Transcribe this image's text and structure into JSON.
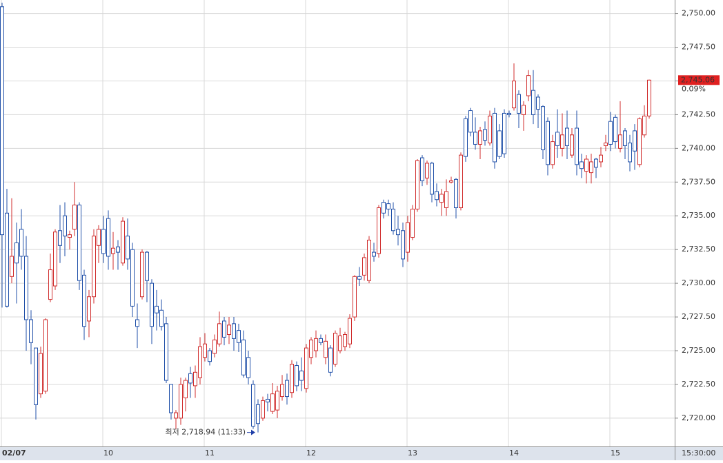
{
  "chart_data": {
    "type": "candlestick",
    "categories": [
      "02/07",
      null,
      null,
      null,
      null,
      null,
      null,
      null,
      null,
      null,
      null,
      null,
      null,
      null,
      null,
      null,
      null,
      null,
      null,
      null,
      null,
      "10",
      null,
      null,
      null,
      null,
      null,
      null,
      null,
      null,
      null,
      null,
      null,
      null,
      null,
      null,
      null,
      null,
      null,
      null,
      null,
      null,
      "11",
      null,
      null,
      null,
      null,
      null,
      null,
      null,
      null,
      null,
      null,
      null,
      null,
      null,
      null,
      null,
      null,
      null,
      null,
      null,
      null,
      "12",
      null,
      null,
      null,
      null,
      null,
      null,
      null,
      null,
      null,
      null,
      null,
      null,
      null,
      null,
      null,
      null,
      null,
      null,
      null,
      null,
      "13",
      null,
      null,
      null,
      null,
      null,
      null,
      null,
      null,
      null,
      null,
      null,
      null,
      null,
      null,
      null,
      null,
      null,
      null,
      null,
      null,
      "14",
      null,
      null,
      null,
      null,
      null,
      null,
      null,
      null,
      null,
      null,
      null,
      null,
      null,
      null,
      null,
      null,
      null,
      null,
      null,
      null,
      "15",
      null,
      null,
      null,
      null,
      null,
      null,
      null,
      null
    ],
    "open": [
      2750.5,
      2735.2,
      2730.5,
      2733.0,
      2734.0,
      2732.0,
      2727.3,
      2725.2,
      2721.8,
      2722.0,
      2728.8,
      2729.8,
      2733.9,
      2735.0,
      2733.4,
      2734.0,
      2735.8,
      2730.6,
      2727.2,
      2729.0,
      2732.8,
      2734.0,
      2734.8,
      2732.2,
      2732.7,
      2731.5,
      2733.5,
      2732.5,
      2727.3,
      2729.0,
      2732.3,
      2730.0,
      2728.3,
      2728.0,
      2727.0,
      2722.5,
      2720.0,
      2720.0,
      2721.5,
      2723.3,
      2722.4,
      2723.0,
      2724.5,
      2725.0,
      2724.8,
      2725.5,
      2727.2,
      2726.2,
      2727.0,
      2726.5,
      2725.8,
      2724.5,
      2722.5,
      2721.0,
      2720.0,
      2721.4,
      2720.5,
      2720.6,
      2721.6,
      2722.8,
      2721.9,
      2723.9,
      2723.5,
      2722.2,
      2724.5,
      2725.0,
      2725.9,
      2724.5,
      2725.2,
      2724.0,
      2725.0,
      2725.3,
      2725.5,
      2727.5,
      2730.5,
      2730.6,
      2730.2,
      2732.3,
      2732.2,
      2736.0,
      2735.9,
      2735.5,
      2734.0,
      2733.9,
      2732.3,
      2733.4,
      2735.5,
      2739.3,
      2737.8,
      2738.9,
      2736.8,
      2736.0,
      2735.6,
      2737.5,
      2737.7,
      2735.6,
      2742.2,
      2742.8,
      2741.2,
      2740.3,
      2741.4,
      2740.4,
      2742.6,
      2741.3,
      2742.6,
      2742.6,
      2743.0,
      2744.0,
      2742.5,
      2743.9,
      2744.3,
      2743.8,
      2743.1,
      2742.0,
      2738.8,
      2741.2,
      2740.0,
      2741.5,
      2739.5,
      2741.5,
      2739.0,
      2738.3,
      2738.2,
      2739.2,
      2739.0,
      2740.2,
      2742.0,
      2742.3,
      2740.0,
      2741.3,
      2740.4,
      2741.3,
      2738.8,
      2741.0,
      2742.4
    ],
    "high": [
      2750.8,
      2737.0,
      2736.3,
      2734.5,
      2735.5,
      2733.5,
      2728.0,
      2725.2,
      2725.3,
      2727.4,
      2732.2,
      2734.0,
      2735.8,
      2736.0,
      2733.9,
      2737.5,
      2736.0,
      2731.0,
      2729.5,
      2734.0,
      2734.3,
      2735.0,
      2735.4,
      2733.8,
      2733.2,
      2734.9,
      2734.8,
      2733.0,
      2728.5,
      2732.5,
      2732.4,
      2730.3,
      2729.5,
      2728.8,
      2727.5,
      2722.5,
      2720.6,
      2723.0,
      2723.0,
      2723.8,
      2723.9,
      2726.0,
      2726.3,
      2725.2,
      2726.2,
      2727.9,
      2727.5,
      2727.5,
      2727.5,
      2727.0,
      2726.5,
      2725.0,
      2722.8,
      2721.4,
      2721.6,
      2721.8,
      2722.6,
      2722.4,
      2723.2,
      2723.3,
      2724.3,
      2724.2,
      2724.5,
      2725.5,
      2726.0,
      2726.5,
      2726.2,
      2726.2,
      2725.4,
      2726.5,
      2726.7,
      2726.4,
      2727.7,
      2730.6,
      2731.2,
      2732.2,
      2733.5,
      2733.0,
      2735.8,
      2736.2,
      2736.2,
      2736.0,
      2735.0,
      2734.5,
      2735.0,
      2735.8,
      2739.2,
      2739.5,
      2739.1,
      2739.0,
      2737.4,
      2737.0,
      2737.7,
      2737.9,
      2737.8,
      2739.7,
      2742.4,
      2743.0,
      2742.3,
      2741.6,
      2742.0,
      2742.8,
      2743.0,
      2741.8,
      2742.9,
      2742.8,
      2746.3,
      2744.3,
      2743.5,
      2745.8,
      2745.8,
      2744.0,
      2743.2,
      2742.3,
      2741.0,
      2742.9,
      2742.6,
      2742.8,
      2741.5,
      2742.8,
      2739.6,
      2739.5,
      2739.6,
      2739.3,
      2740.1,
      2741.0,
      2742.7,
      2742.5,
      2743.5,
      2741.5,
      2741.0,
      2741.8,
      2742.3,
      2743.2,
      2745.1
    ],
    "low": [
      2728.2,
      2728.2,
      2730.0,
      2728.5,
      2731.0,
      2725.0,
      2724.0,
      2719.9,
      2721.5,
      2721.8,
      2728.6,
      2729.5,
      2731.5,
      2732.0,
      2732.5,
      2733.5,
      2729.5,
      2725.8,
      2726.0,
      2728.5,
      2731.5,
      2731.5,
      2731.0,
      2731.0,
      2731.0,
      2731.3,
      2731.0,
      2727.5,
      2725.2,
      2728.8,
      2728.6,
      2725.5,
      2726.5,
      2726.5,
      2722.6,
      2719.9,
      2719.2,
      2719.5,
      2720.5,
      2721.5,
      2721.5,
      2722.5,
      2724.2,
      2723.9,
      2724.5,
      2725.3,
      2725.4,
      2725.5,
      2725.0,
      2724.9,
      2723.0,
      2722.5,
      2719.2,
      2718.94,
      2719.8,
      2720.5,
      2720.3,
      2720.0,
      2721.3,
      2721.0,
      2721.5,
      2722.0,
      2722.0,
      2721.9,
      2724.0,
      2724.5,
      2725.4,
      2724.0,
      2723.1,
      2723.8,
      2724.8,
      2725.0,
      2725.2,
      2727.2,
      2729.8,
      2730.2,
      2730.0,
      2731.6,
      2731.9,
      2734.8,
      2735.0,
      2733.6,
      2732.8,
      2731.2,
      2731.6,
      2733.2,
      2735.3,
      2737.2,
      2737.3,
      2736.0,
      2735.7,
      2735.0,
      2735.0,
      2737.4,
      2734.8,
      2735.4,
      2739.0,
      2740.9,
      2739.9,
      2739.2,
      2740.2,
      2740.2,
      2738.5,
      2739.2,
      2739.3,
      2742.3,
      2742.8,
      2741.5,
      2741.3,
      2743.5,
      2741.8,
      2741.5,
      2739.2,
      2738.0,
      2738.5,
      2739.3,
      2739.4,
      2739.2,
      2739.3,
      2738.0,
      2737.8,
      2737.4,
      2737.4,
      2737.8,
      2738.6,
      2739.8,
      2739.8,
      2740.0,
      2739.7,
      2739.2,
      2738.3,
      2738.4,
      2738.6,
      2740.8,
      2742.2
    ],
    "close": [
      2733.6,
      2728.3,
      2732.0,
      2731.5,
      2732.0,
      2727.3,
      2725.6,
      2721.0,
      2724.8,
      2727.3,
      2731.0,
      2733.8,
      2732.8,
      2733.5,
      2733.6,
      2735.8,
      2730.2,
      2726.8,
      2729.0,
      2733.5,
      2734.0,
      2732.2,
      2732.0,
      2732.6,
      2732.3,
      2734.6,
      2731.8,
      2728.3,
      2726.8,
      2732.3,
      2730.2,
      2726.8,
      2727.8,
      2726.8,
      2722.8,
      2720.4,
      2720.4,
      2722.5,
      2722.8,
      2722.6,
      2723.4,
      2725.3,
      2725.5,
      2724.2,
      2725.8,
      2727.0,
      2726.0,
      2726.9,
      2725.9,
      2725.6,
      2723.2,
      2723.0,
      2719.4,
      2719.6,
      2721.3,
      2721.2,
      2721.8,
      2722.0,
      2722.5,
      2721.6,
      2724.0,
      2722.4,
      2722.8,
      2725.2,
      2725.8,
      2725.9,
      2725.6,
      2725.7,
      2723.4,
      2726.3,
      2726.1,
      2726.2,
      2727.4,
      2730.5,
      2730.3,
      2731.9,
      2733.2,
      2732.0,
      2735.6,
      2735.2,
      2735.5,
      2733.9,
      2733.6,
      2731.8,
      2734.5,
      2735.5,
      2739.1,
      2737.6,
      2738.9,
      2736.6,
      2736.2,
      2736.6,
      2736.8,
      2737.6,
      2735.6,
      2739.5,
      2739.4,
      2741.2,
      2740.3,
      2741.3,
      2740.6,
      2742.4,
      2739.0,
      2739.4,
      2739.6,
      2742.5,
      2745.0,
      2742.6,
      2743.2,
      2745.4,
      2742.5,
      2742.9,
      2739.9,
      2738.8,
      2740.5,
      2740.2,
      2741.0,
      2740.2,
      2741.0,
      2738.8,
      2738.5,
      2739.2,
      2739.0,
      2738.6,
      2739.5,
      2740.4,
      2740.3,
      2740.5,
      2741.0,
      2740.2,
      2739.0,
      2739.8,
      2742.2,
      2742.4,
      2745.06
    ],
    "up_color": "#d02c2c",
    "down_color": "#1f4fa8",
    "ylim": [
      2717.9,
      2751.0
    ],
    "yticks": [
      {
        "value": 2720,
        "label": "2,720.00"
      },
      {
        "value": 2722.5,
        "label": "2,722.50"
      },
      {
        "value": 2725,
        "label": "2,725.00"
      },
      {
        "value": 2727.5,
        "label": "2,727.50"
      },
      {
        "value": 2730,
        "label": "2,730.00"
      },
      {
        "value": 2732.5,
        "label": "2,732.50"
      },
      {
        "value": 2735,
        "label": "2,735.00"
      },
      {
        "value": 2737.5,
        "label": "2,737.50"
      },
      {
        "value": 2740,
        "label": "2,740.00"
      },
      {
        "value": 2742.5,
        "label": "2,742.50"
      },
      {
        "value": 2745,
        "label": "2,745.00"
      },
      {
        "value": 2747.5,
        "label": "2,747.50"
      },
      {
        "value": 2750,
        "label": "2,750.00"
      }
    ],
    "grid": true,
    "time_label": "15:30:00",
    "low_annotation": "최저 2,718.94 (11:33)",
    "last_price": {
      "label": "2,745.06",
      "change": "0.09%"
    }
  }
}
